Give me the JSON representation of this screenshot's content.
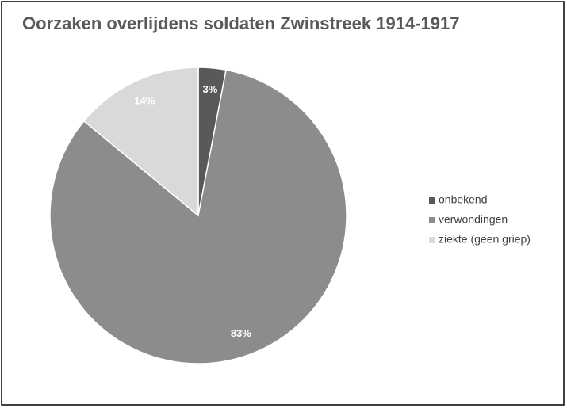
{
  "chart_data": {
    "type": "pie",
    "title": "Oorzaken overlijdens soldaten Zwinstreek 1914-1917",
    "categories": [
      "onbekend",
      "verwondingen",
      "ziekte (geen griep)"
    ],
    "values": [
      3,
      83,
      14
    ],
    "value_labels": [
      "3%",
      "83%",
      "14%"
    ],
    "colors": [
      "#595959",
      "#8c8c8c",
      "#d9d9d9"
    ],
    "legend": "right"
  }
}
